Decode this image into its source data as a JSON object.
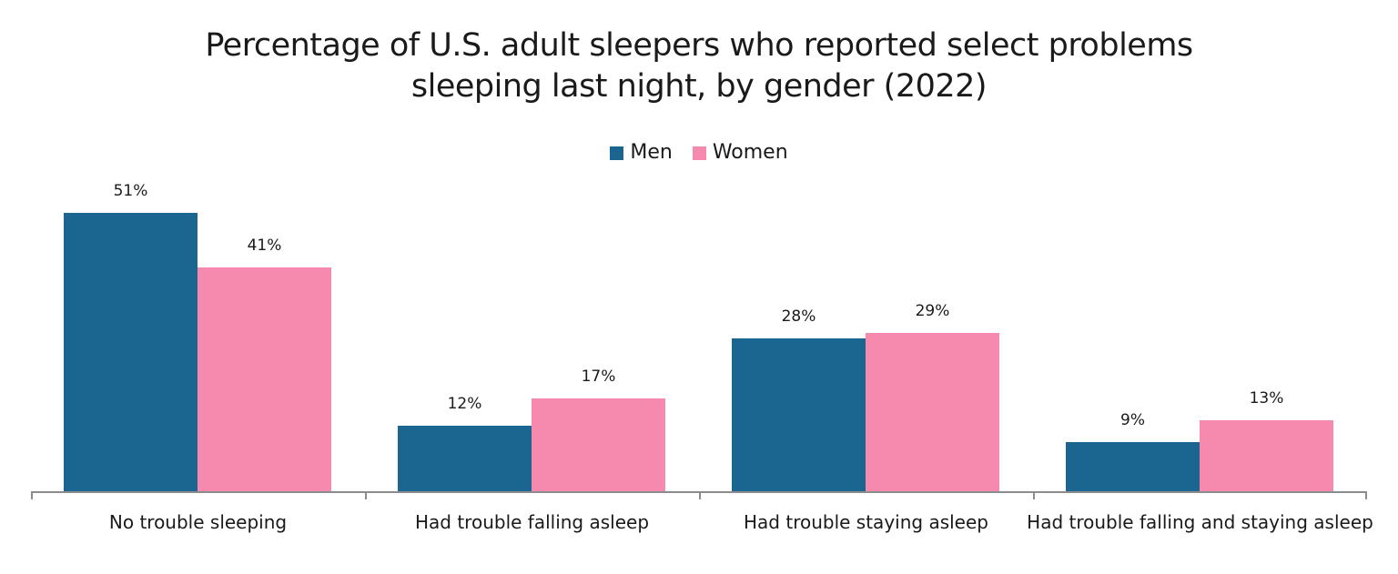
{
  "chart_data": {
    "type": "bar",
    "title": "Percentage of U.S. adult sleepers who reported select problems sleeping last night, by gender (2022)",
    "title_lines": [
      "Percentage of U.S. adult sleepers who reported select problems",
      "sleeping last night, by gender (2022)"
    ],
    "categories": [
      "No trouble sleeping",
      "Had trouble falling asleep",
      "Had trouble staying asleep",
      "Had trouble falling and staying asleep"
    ],
    "series": [
      {
        "name": "Men",
        "color": "#1b6690",
        "values": [
          51,
          12,
          28,
          9
        ],
        "labels": [
          "51%",
          "12%",
          "28%",
          "9%"
        ]
      },
      {
        "name": "Women",
        "color": "#f589ae",
        "values": [
          41,
          17,
          29,
          13
        ],
        "labels": [
          "41%",
          "17%",
          "29%",
          "13%"
        ]
      }
    ],
    "xlabel": "",
    "ylabel": "",
    "ylim": [
      0,
      55
    ],
    "grid": false,
    "legend_position": "top",
    "data_labels": true
  }
}
